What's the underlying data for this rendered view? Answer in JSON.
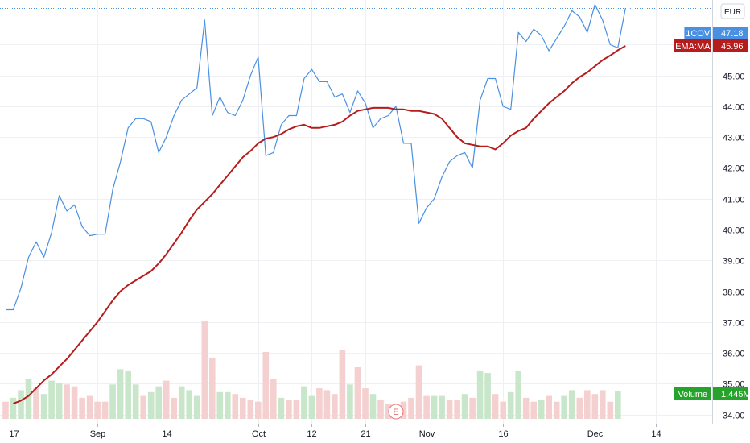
{
  "currency_label": "EUR",
  "chart_data": {
    "type": "line",
    "grid": true,
    "price_axis": {
      "position": "right",
      "ylim": [
        33.7,
        47.45
      ],
      "ticks": [
        "34.00",
        "35.00",
        "36.00",
        "37.00",
        "38.00",
        "39.00",
        "40.00",
        "41.00",
        "42.00",
        "43.00",
        "44.00",
        "45.00",
        "46.00"
      ]
    },
    "time_axis": {
      "ticks": [
        {
          "label": "17",
          "index": 1
        },
        {
          "label": "Sep",
          "index": 12
        },
        {
          "label": "14",
          "index": 21
        },
        {
          "label": "Oct",
          "index": 33
        },
        {
          "label": "12",
          "index": 40
        },
        {
          "label": "21",
          "index": 47
        },
        {
          "label": "Nov",
          "index": 55
        },
        {
          "label": "16",
          "index": 65
        },
        {
          "label": "Dec",
          "index": 77
        },
        {
          "label": "14",
          "index": 85
        }
      ]
    },
    "series": [
      {
        "name": "1COV",
        "color": "#4a90e2",
        "last_value": "47.18",
        "values": [
          37.4,
          37.4,
          38.1,
          39.1,
          39.6,
          39.1,
          39.9,
          41.1,
          40.6,
          40.8,
          40.1,
          39.8,
          39.85,
          39.85,
          41.3,
          42.2,
          43.3,
          43.6,
          43.6,
          43.5,
          42.5,
          43.0,
          43.7,
          44.2,
          44.4,
          44.6,
          46.8,
          43.7,
          44.3,
          43.8,
          43.7,
          44.2,
          45.0,
          45.6,
          42.4,
          42.5,
          43.4,
          43.7,
          43.7,
          44.9,
          45.2,
          44.8,
          44.8,
          44.3,
          44.4,
          43.8,
          44.5,
          44.1,
          43.3,
          43.6,
          43.7,
          44.0,
          42.8,
          42.8,
          40.2,
          40.7,
          41.0,
          41.7,
          42.2,
          42.4,
          42.5,
          42.0,
          44.2,
          44.9,
          44.9,
          44.0,
          43.9,
          46.4,
          46.1,
          46.5,
          46.3,
          45.8,
          46.2,
          46.6,
          47.1,
          46.9,
          46.4,
          47.3,
          46.8,
          46.0,
          45.9,
          47.18
        ],
        "x_start": 0
      },
      {
        "name": "EMA:MA",
        "color": "#b71c1c",
        "last_value": "45.96",
        "values": [
          34.35,
          34.45,
          34.6,
          34.85,
          35.1,
          35.3,
          35.55,
          35.8,
          36.1,
          36.4,
          36.7,
          37.0,
          37.35,
          37.7,
          38.0,
          38.2,
          38.35,
          38.5,
          38.65,
          38.9,
          39.2,
          39.55,
          39.9,
          40.3,
          40.65,
          40.9,
          41.15,
          41.45,
          41.75,
          42.05,
          42.35,
          42.55,
          42.8,
          42.95,
          43.0,
          43.1,
          43.25,
          43.35,
          43.4,
          43.3,
          43.3,
          43.35,
          43.4,
          43.5,
          43.7,
          43.85,
          43.9,
          43.95,
          43.95,
          43.95,
          43.9,
          43.9,
          43.85,
          43.85,
          43.8,
          43.75,
          43.6,
          43.3,
          43.0,
          42.8,
          42.75,
          42.7,
          42.7,
          42.6,
          42.8,
          43.05,
          43.2,
          43.3,
          43.6,
          43.85,
          44.1,
          44.3,
          44.5,
          44.75,
          44.95,
          45.1,
          45.3,
          45.5,
          45.65,
          45.82,
          45.96
        ],
        "x_start": 1
      }
    ],
    "volume": {
      "name": "Volume",
      "last_value": "1.445M",
      "max": 5.4,
      "colors": {
        "up": "#c8e6c9",
        "down": "#f5d0d0"
      },
      "bars": [
        {
          "v": 0.9,
          "up": false
        },
        {
          "v": 1.1,
          "up": true
        },
        {
          "v": 1.5,
          "up": true
        },
        {
          "v": 2.1,
          "up": true
        },
        {
          "v": 1.6,
          "up": false
        },
        {
          "v": 1.3,
          "up": true
        },
        {
          "v": 2.0,
          "up": true
        },
        {
          "v": 1.9,
          "up": true
        },
        {
          "v": 1.8,
          "up": false
        },
        {
          "v": 1.7,
          "up": false
        },
        {
          "v": 1.1,
          "up": false
        },
        {
          "v": 1.2,
          "up": false
        },
        {
          "v": 0.9,
          "up": false
        },
        {
          "v": 0.9,
          "up": false
        },
        {
          "v": 1.8,
          "up": true
        },
        {
          "v": 2.6,
          "up": true
        },
        {
          "v": 2.5,
          "up": true
        },
        {
          "v": 1.8,
          "up": true
        },
        {
          "v": 1.2,
          "up": false
        },
        {
          "v": 1.4,
          "up": true
        },
        {
          "v": 1.7,
          "up": true
        },
        {
          "v": 2.0,
          "up": false
        },
        {
          "v": 1.1,
          "up": false
        },
        {
          "v": 1.7,
          "up": true
        },
        {
          "v": 1.5,
          "up": true
        },
        {
          "v": 1.2,
          "up": true
        },
        {
          "v": 5.1,
          "up": false
        },
        {
          "v": 3.2,
          "up": false
        },
        {
          "v": 1.4,
          "up": true
        },
        {
          "v": 1.4,
          "up": true
        },
        {
          "v": 1.3,
          "up": false
        },
        {
          "v": 1.1,
          "up": false
        },
        {
          "v": 1.0,
          "up": false
        },
        {
          "v": 0.9,
          "up": false
        },
        {
          "v": 3.5,
          "up": false
        },
        {
          "v": 2.1,
          "up": false
        },
        {
          "v": 1.1,
          "up": true
        },
        {
          "v": 1.0,
          "up": false
        },
        {
          "v": 1.0,
          "up": false
        },
        {
          "v": 1.7,
          "up": true
        },
        {
          "v": 1.2,
          "up": true
        },
        {
          "v": 1.6,
          "up": false
        },
        {
          "v": 1.5,
          "up": false
        },
        {
          "v": 1.3,
          "up": false
        },
        {
          "v": 3.6,
          "up": false
        },
        {
          "v": 1.8,
          "up": true
        },
        {
          "v": 2.7,
          "up": false
        },
        {
          "v": 1.6,
          "up": false
        },
        {
          "v": 1.3,
          "up": true
        },
        {
          "v": 1.0,
          "up": false
        },
        {
          "v": 0.8,
          "up": false
        },
        {
          "v": 0.7,
          "up": false
        },
        {
          "v": 0.9,
          "up": false
        },
        {
          "v": 1.1,
          "up": false
        },
        {
          "v": 2.8,
          "up": false
        },
        {
          "v": 1.2,
          "up": false
        },
        {
          "v": 1.2,
          "up": true
        },
        {
          "v": 1.2,
          "up": true
        },
        {
          "v": 1.0,
          "up": false
        },
        {
          "v": 1.0,
          "up": false
        },
        {
          "v": 1.3,
          "up": true
        },
        {
          "v": 1.1,
          "up": false
        },
        {
          "v": 2.5,
          "up": true
        },
        {
          "v": 2.4,
          "up": true
        },
        {
          "v": 1.3,
          "up": false
        },
        {
          "v": 0.9,
          "up": false
        },
        {
          "v": 1.4,
          "up": true
        },
        {
          "v": 2.5,
          "up": true
        },
        {
          "v": 1.1,
          "up": false
        },
        {
          "v": 0.9,
          "up": false
        },
        {
          "v": 1.0,
          "up": true
        },
        {
          "v": 1.2,
          "up": false
        },
        {
          "v": 0.9,
          "up": false
        },
        {
          "v": 1.2,
          "up": true
        },
        {
          "v": 1.5,
          "up": true
        },
        {
          "v": 1.1,
          "up": false
        },
        {
          "v": 1.5,
          "up": false
        },
        {
          "v": 1.3,
          "up": false
        },
        {
          "v": 1.5,
          "up": false
        },
        {
          "v": 0.9,
          "up": false
        },
        {
          "v": 1.445,
          "up": true
        }
      ]
    },
    "earnings_marker": {
      "label": "E",
      "index": 51
    }
  }
}
